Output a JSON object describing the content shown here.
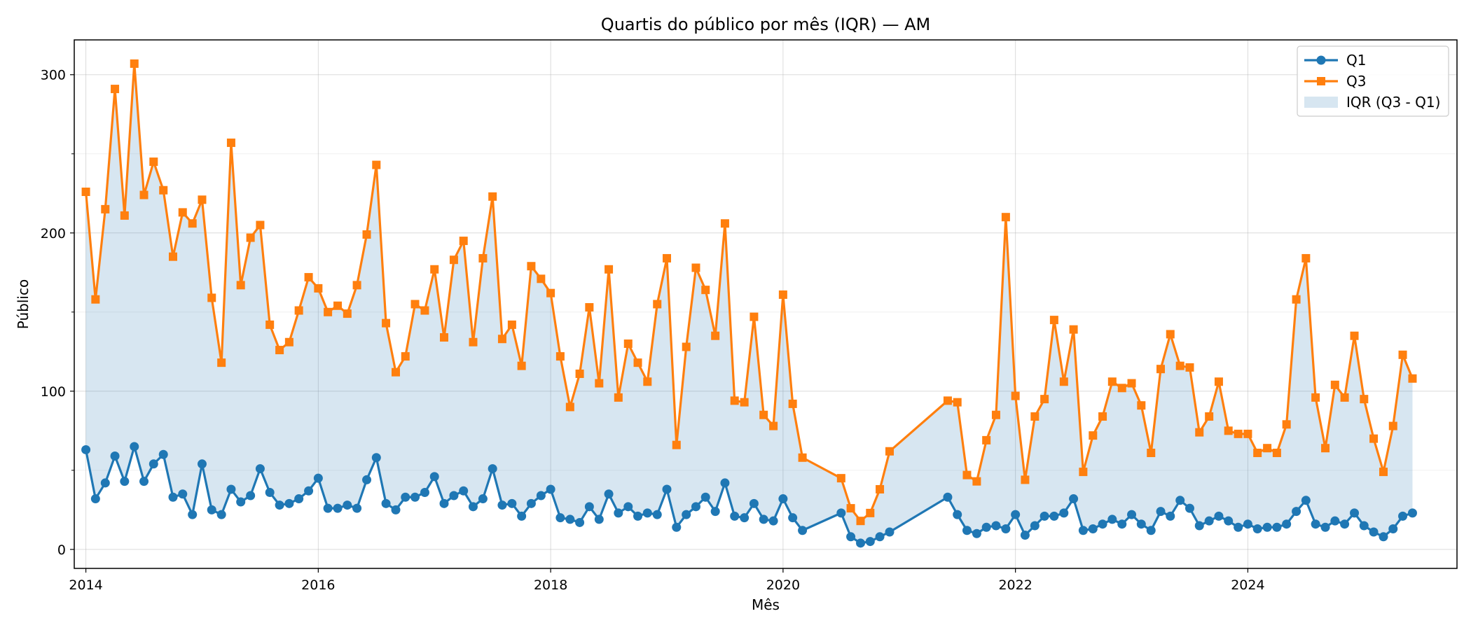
{
  "chart_data": {
    "type": "line",
    "title": "Quartis do público por mês (IQR) — AM",
    "xlabel": "Mês",
    "ylabel": "Público",
    "xlim": [
      2013.9,
      2025.8
    ],
    "ylim": [
      -12,
      322
    ],
    "xticks": [
      2014,
      2016,
      2018,
      2020,
      2022,
      2024
    ],
    "xtick_labels": [
      "2014",
      "2016",
      "2018",
      "2020",
      "2022",
      "2024"
    ],
    "yticks": [
      0,
      100,
      200,
      300
    ],
    "ytick_labels": [
      "0",
      "100",
      "200",
      "300"
    ],
    "grid": true,
    "legend_position": "top-right",
    "colors": {
      "q1": "#1f77b4",
      "q3": "#ff7f0e",
      "iqr_fill": "#1f77b4"
    },
    "legend": {
      "q1": "Q1",
      "q3": "Q3",
      "iqr": "IQR (Q3 - Q1)"
    },
    "x": [
      2014.0,
      2014.083,
      2014.167,
      2014.25,
      2014.333,
      2014.417,
      2014.5,
      2014.583,
      2014.667,
      2014.75,
      2014.833,
      2014.917,
      2015.0,
      2015.083,
      2015.167,
      2015.25,
      2015.333,
      2015.417,
      2015.5,
      2015.583,
      2015.667,
      2015.75,
      2015.833,
      2015.917,
      2016.0,
      2016.083,
      2016.167,
      2016.25,
      2016.333,
      2016.417,
      2016.5,
      2016.583,
      2016.667,
      2016.75,
      2016.833,
      2016.917,
      2017.0,
      2017.083,
      2017.167,
      2017.25,
      2017.333,
      2017.417,
      2017.5,
      2017.583,
      2017.667,
      2017.75,
      2017.833,
      2017.917,
      2018.0,
      2018.083,
      2018.167,
      2018.25,
      2018.333,
      2018.417,
      2018.5,
      2018.583,
      2018.667,
      2018.75,
      2018.833,
      2018.917,
      2019.0,
      2019.083,
      2019.167,
      2019.25,
      2019.333,
      2019.417,
      2019.5,
      2019.583,
      2019.667,
      2019.75,
      2019.833,
      2019.917,
      2020.0,
      2020.083,
      2020.167,
      2020.5,
      2020.583,
      2020.667,
      2020.75,
      2020.833,
      2020.917,
      2021.417,
      2021.5,
      2021.583,
      2021.667,
      2021.75,
      2021.833,
      2021.917,
      2022.0,
      2022.083,
      2022.167,
      2022.25,
      2022.333,
      2022.417,
      2022.5,
      2022.583,
      2022.667,
      2022.75,
      2022.833,
      2022.917,
      2023.0,
      2023.083,
      2023.167,
      2023.25,
      2023.333,
      2023.417,
      2023.5,
      2023.583,
      2023.667,
      2023.75,
      2023.833,
      2023.917,
      2024.0,
      2024.083,
      2024.167,
      2024.25,
      2024.333,
      2024.417,
      2024.5,
      2024.583,
      2024.667,
      2024.75,
      2024.833,
      2024.917,
      2025.0,
      2025.083,
      2025.167,
      2025.25,
      2025.333,
      2025.417
    ],
    "series": [
      {
        "name": "Q1",
        "marker": "circle",
        "values": [
          63,
          32,
          42,
          59,
          43,
          65,
          43,
          54,
          60,
          33,
          35,
          22,
          54,
          25,
          22,
          38,
          30,
          34,
          51,
          36,
          28,
          29,
          32,
          37,
          45,
          26,
          26,
          28,
          26,
          44,
          58,
          29,
          25,
          33,
          33,
          36,
          46,
          29,
          34,
          37,
          27,
          32,
          51,
          28,
          29,
          21,
          29,
          34,
          38,
          20,
          19,
          17,
          27,
          19,
          35,
          23,
          27,
          21,
          23,
          22,
          38,
          14,
          22,
          27,
          33,
          24,
          42,
          21,
          20,
          29,
          19,
          18,
          32,
          20,
          12,
          23,
          8,
          4,
          5,
          8,
          11,
          33,
          22,
          12,
          10,
          14,
          15,
          13,
          22,
          9,
          15,
          21,
          21,
          23,
          32,
          12,
          13,
          16,
          19,
          16,
          22,
          16,
          12,
          24,
          21,
          31,
          26,
          15,
          18,
          21,
          18,
          14,
          16,
          13,
          14,
          14,
          16,
          24,
          31,
          16,
          14,
          18,
          16,
          23,
          15,
          11,
          8,
          13,
          21,
          23
        ]
      },
      {
        "name": "Q3",
        "marker": "square",
        "values": [
          226,
          158,
          215,
          291,
          211,
          307,
          224,
          245,
          227,
          185,
          213,
          206,
          221,
          159,
          118,
          257,
          167,
          197,
          205,
          142,
          126,
          131,
          151,
          172,
          165,
          150,
          154,
          149,
          167,
          199,
          243,
          143,
          112,
          122,
          155,
          151,
          177,
          134,
          183,
          195,
          131,
          184,
          223,
          133,
          142,
          116,
          179,
          171,
          162,
          122,
          90,
          111,
          153,
          105,
          177,
          96,
          130,
          118,
          106,
          155,
          184,
          66,
          128,
          178,
          164,
          135,
          206,
          94,
          93,
          147,
          85,
          78,
          161,
          92,
          58,
          45,
          26,
          18,
          23,
          38,
          62,
          94,
          93,
          47,
          43,
          69,
          85,
          210,
          97,
          44,
          84,
          95,
          145,
          106,
          139,
          49,
          72,
          84,
          106,
          102,
          105,
          91,
          61,
          114,
          136,
          116,
          115,
          74,
          84,
          106,
          75,
          73,
          73,
          61,
          64,
          61,
          79,
          158,
          184,
          96,
          64,
          104,
          96,
          135,
          95,
          70,
          49,
          78,
          123,
          108
        ]
      }
    ]
  }
}
